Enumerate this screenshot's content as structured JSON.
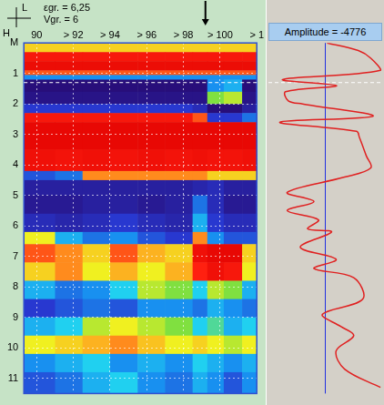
{
  "chart_data": [
    {
      "type": "heatmap",
      "annotations": [
        "L",
        "H",
        "εgr. = 6,25",
        "Vgr. = 6"
      ],
      "x_edges": [
        89.3,
        91,
        92.5,
        94,
        95.5,
        97,
        98.5,
        99.3,
        100.2,
        101.2,
        102
      ],
      "y_edges": [
        0,
        0.3,
        0.6,
        0.9,
        1.05,
        1.2,
        1.6,
        2.0,
        2.3,
        2.6,
        3.5,
        4.2,
        4.5,
        5.0,
        5.6,
        6.2,
        6.6,
        7.2,
        7.8,
        8.4,
        9.0,
        9.6,
        10.2,
        10.8,
        11.5
      ],
      "cells": [
        [
          40,
          40,
          40,
          40,
          40,
          40,
          40,
          40,
          40,
          40
        ],
        [
          85,
          85,
          85,
          85,
          85,
          85,
          85,
          85,
          85,
          85
        ],
        [
          92,
          92,
          92,
          92,
          92,
          92,
          92,
          92,
          92,
          92
        ],
        [
          70,
          70,
          70,
          70,
          70,
          70,
          70,
          70,
          70,
          70
        ],
        [
          -30,
          -30,
          -30,
          -30,
          -30,
          -30,
          -30,
          -30,
          -30,
          -30
        ],
        [
          -95,
          -95,
          -95,
          -95,
          -95,
          -95,
          -95,
          -30,
          -20,
          -95
        ],
        [
          -90,
          -90,
          -90,
          -90,
          -90,
          -90,
          -90,
          10,
          20,
          -90
        ],
        [
          -60,
          -60,
          -60,
          -60,
          -60,
          -60,
          -70,
          -95,
          -95,
          -80
        ],
        [
          85,
          85,
          85,
          85,
          85,
          85,
          70,
          -60,
          -60,
          -40
        ],
        [
          95,
          95,
          95,
          95,
          95,
          95,
          95,
          95,
          95,
          95
        ],
        [
          90,
          88,
          90,
          88,
          90,
          88,
          90,
          88,
          88,
          90
        ],
        [
          -50,
          -40,
          60,
          60,
          60,
          60,
          60,
          40,
          40,
          40
        ],
        [
          -80,
          -80,
          -80,
          -80,
          -80,
          -80,
          -75,
          -70,
          -80,
          -80
        ],
        [
          -85,
          -85,
          -80,
          -80,
          -85,
          -80,
          -40,
          -70,
          -85,
          -85
        ],
        [
          -70,
          -75,
          -70,
          -60,
          -70,
          -75,
          -20,
          -60,
          -70,
          -70
        ],
        [
          30,
          -20,
          -40,
          -30,
          -50,
          -60,
          60,
          -30,
          -50,
          -50
        ],
        [
          70,
          60,
          40,
          70,
          50,
          40,
          90,
          95,
          95,
          40
        ],
        [
          40,
          60,
          30,
          50,
          30,
          50,
          80,
          90,
          85,
          30
        ],
        [
          -20,
          -40,
          -30,
          -10,
          20,
          10,
          -10,
          20,
          10,
          -20
        ],
        [
          -60,
          -50,
          -40,
          -50,
          -30,
          -30,
          -40,
          -20,
          -30,
          -40
        ],
        [
          -20,
          -10,
          20,
          30,
          20,
          10,
          -10,
          0,
          -20,
          -10
        ],
        [
          30,
          40,
          50,
          60,
          45,
          30,
          40,
          30,
          20,
          30
        ],
        [
          -30,
          -20,
          -10,
          -30,
          -20,
          -30,
          -10,
          -20,
          -30,
          -20
        ],
        [
          -50,
          -40,
          -20,
          -10,
          -30,
          -40,
          -20,
          -30,
          -50,
          -30
        ]
      ],
      "zlim": [
        -100,
        100
      ],
      "xlim": [
        89.3,
        102
      ],
      "xticks": [
        90,
        {
          "value": 92,
          "label": "> 92"
        },
        {
          "value": 94,
          "label": "> 94"
        },
        {
          "value": 96,
          "label": "> 96"
        },
        {
          "value": 98,
          "label": "> 98"
        },
        {
          "value": 100,
          "label": "> 100"
        },
        {
          "value": 102,
          "label": "> 1"
        }
      ],
      "ylim": [
        0,
        11.5
      ],
      "yticks": [
        {
          "value": 0,
          "label": "M"
        },
        1,
        2,
        3,
        4,
        5,
        6,
        7,
        8,
        9,
        10,
        11
      ],
      "grid": true,
      "cursor": {
        "x": 99.2,
        "depth": 1.3
      }
    },
    {
      "type": "line",
      "title": "Amplitude = -4776",
      "x": [
        3,
        58,
        80,
        97,
        -75,
        20,
        -70,
        -65,
        -40,
        84,
        -80,
        55,
        60,
        72,
        80,
        34,
        -67,
        -20,
        -67,
        -12,
        -31,
        11,
        -44,
        19,
        -20,
        50,
        66,
        -5,
        27,
        50,
        19,
        34,
        97
      ],
      "y": [
        0,
        0.25,
        0.5,
        0.9,
        1.2,
        1.4,
        1.6,
        1.9,
        2.0,
        2.4,
        2.6,
        2.9,
        3.1,
        3.7,
        4.1,
        4.4,
        4.9,
        5.2,
        5.5,
        5.8,
        6.1,
        6.2,
        6.7,
        7.1,
        7.4,
        7.7,
        8.4,
        8.9,
        9.3,
        9.6,
        10.1,
        10.7,
        11.3
      ],
      "xlim": [
        -100,
        100
      ],
      "ylim": [
        0,
        11.5
      ],
      "tick_labels": false,
      "color": "#e02020",
      "cursor": {
        "depth": 1.3
      }
    }
  ]
}
